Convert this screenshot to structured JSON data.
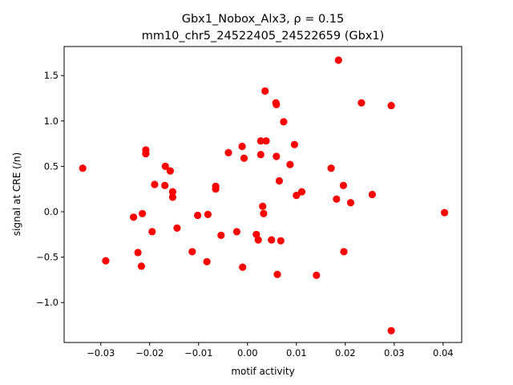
{
  "chart_data": {
    "type": "scatter",
    "title_line1": "Gbx1_Nobox_Alx3, ρ = 0.15",
    "title_line2": "mm10_chr5_24522405_24522659 (Gbx1)",
    "xlabel": "motif activity",
    "ylabel": "signal at CRE (/n)",
    "xlim": [
      -0.0375,
      0.0438
    ],
    "ylim": [
      -1.44,
      1.82
    ],
    "xticks": [
      -0.03,
      -0.02,
      -0.01,
      0.0,
      0.01,
      0.02,
      0.03,
      0.04
    ],
    "xtick_labels": [
      "−0.03",
      "−0.02",
      "−0.01",
      "0.00",
      "0.01",
      "0.02",
      "0.03",
      "0.04"
    ],
    "yticks": [
      -1.0,
      -0.5,
      0.0,
      0.5,
      1.0,
      1.5
    ],
    "ytick_labels": [
      "−1.0",
      "−0.5",
      "0.0",
      "0.5",
      "1.0",
      "1.5"
    ],
    "grid": false,
    "marker_color": "#ff0000",
    "points": [
      {
        "x": -0.0337,
        "y": 0.48
      },
      {
        "x": -0.029,
        "y": -0.54
      },
      {
        "x": -0.0233,
        "y": -0.06
      },
      {
        "x": -0.0224,
        "y": -0.45
      },
      {
        "x": -0.0217,
        "y": -0.6
      },
      {
        "x": -0.0215,
        "y": -0.02
      },
      {
        "x": -0.0208,
        "y": 0.68
      },
      {
        "x": -0.0208,
        "y": 0.64
      },
      {
        "x": -0.0195,
        "y": -0.22
      },
      {
        "x": -0.019,
        "y": 0.3
      },
      {
        "x": -0.0169,
        "y": 0.29
      },
      {
        "x": -0.0168,
        "y": 0.5
      },
      {
        "x": -0.0158,
        "y": 0.45
      },
      {
        "x": -0.0153,
        "y": 0.22
      },
      {
        "x": -0.0153,
        "y": 0.16
      },
      {
        "x": -0.0144,
        "y": -0.18
      },
      {
        "x": -0.0113,
        "y": -0.44
      },
      {
        "x": -0.0102,
        "y": -0.04
      },
      {
        "x": -0.0083,
        "y": -0.55
      },
      {
        "x": -0.0081,
        "y": -0.03
      },
      {
        "x": -0.0065,
        "y": 0.28
      },
      {
        "x": -0.0065,
        "y": 0.25
      },
      {
        "x": -0.0054,
        "y": -0.26
      },
      {
        "x": -0.0039,
        "y": 0.65
      },
      {
        "x": -0.0022,
        "y": -0.22
      },
      {
        "x": -0.0011,
        "y": 0.72
      },
      {
        "x": -0.001,
        "y": -0.61
      },
      {
        "x": -0.0007,
        "y": 0.59
      },
      {
        "x": 0.0018,
        "y": -0.25
      },
      {
        "x": 0.0022,
        "y": -0.31
      },
      {
        "x": 0.0027,
        "y": 0.78
      },
      {
        "x": 0.0027,
        "y": 0.63
      },
      {
        "x": 0.0031,
        "y": 0.06
      },
      {
        "x": 0.0033,
        "y": -0.02
      },
      {
        "x": 0.0036,
        "y": 1.33
      },
      {
        "x": 0.0038,
        "y": 0.78
      },
      {
        "x": 0.0049,
        "y": -0.31
      },
      {
        "x": 0.0058,
        "y": 1.2
      },
      {
        "x": 0.0059,
        "y": 1.18
      },
      {
        "x": 0.0059,
        "y": 0.61
      },
      {
        "x": 0.0061,
        "y": -0.69
      },
      {
        "x": 0.0065,
        "y": 0.34
      },
      {
        "x": 0.0068,
        "y": -0.32
      },
      {
        "x": 0.0074,
        "y": 0.99
      },
      {
        "x": 0.0087,
        "y": 0.52
      },
      {
        "x": 0.0096,
        "y": 0.74
      },
      {
        "x": 0.01,
        "y": 0.18
      },
      {
        "x": 0.0111,
        "y": 0.22
      },
      {
        "x": 0.0141,
        "y": -0.7
      },
      {
        "x": 0.0171,
        "y": 0.48
      },
      {
        "x": 0.0182,
        "y": 0.14
      },
      {
        "x": 0.0186,
        "y": 1.67
      },
      {
        "x": 0.0196,
        "y": 0.29
      },
      {
        "x": 0.0197,
        "y": -0.44
      },
      {
        "x": 0.0211,
        "y": 0.1
      },
      {
        "x": 0.0233,
        "y": 1.2
      },
      {
        "x": 0.0255,
        "y": 0.19
      },
      {
        "x": 0.0294,
        "y": 1.17
      },
      {
        "x": 0.0294,
        "y": -1.31
      },
      {
        "x": 0.0403,
        "y": -0.01
      }
    ]
  }
}
